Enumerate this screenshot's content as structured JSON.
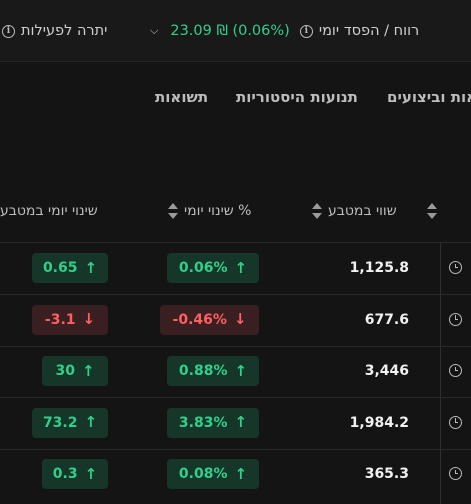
{
  "topbar": {
    "daily_pnl_label": "רווח / הפסד יומי",
    "daily_pnl_value": "23.09 ₪ (0.06%)",
    "balance_label": "יתרה לפעילות"
  },
  "tabs": [
    {
      "label": "תשואות"
    },
    {
      "label": "תנועות היסטוריות"
    },
    {
      "label": "אות וביצועים"
    }
  ],
  "table": {
    "headers": {
      "value_in_currency": "שווי במטבע",
      "daily_change_pct": "שינוי יומי %",
      "daily_change_currency": "שינוי יומי במטבע"
    },
    "rows": [
      {
        "value": "1,125.8",
        "pct": "0.06%",
        "pct_dir": "up",
        "chg": "0.65",
        "chg_dir": "up"
      },
      {
        "value": "677.6",
        "pct": "-0.46%",
        "pct_dir": "down",
        "chg": "-3.1",
        "chg_dir": "down"
      },
      {
        "value": "3,446",
        "pct": "0.88%",
        "pct_dir": "up",
        "chg": "30",
        "chg_dir": "up"
      },
      {
        "value": "1,984.2",
        "pct": "3.83%",
        "pct_dir": "up",
        "chg": "73.2",
        "chg_dir": "up"
      },
      {
        "value": "365.3",
        "pct": "0.08%",
        "pct_dir": "up",
        "chg": "0.3",
        "chg_dir": "up"
      }
    ]
  },
  "colors": {
    "up": "#2fd08a",
    "down": "#ff5a5a",
    "background": "#141414"
  },
  "icons": {
    "up_arrow": "↑",
    "down_arrow": "↓",
    "currency": "₪"
  }
}
